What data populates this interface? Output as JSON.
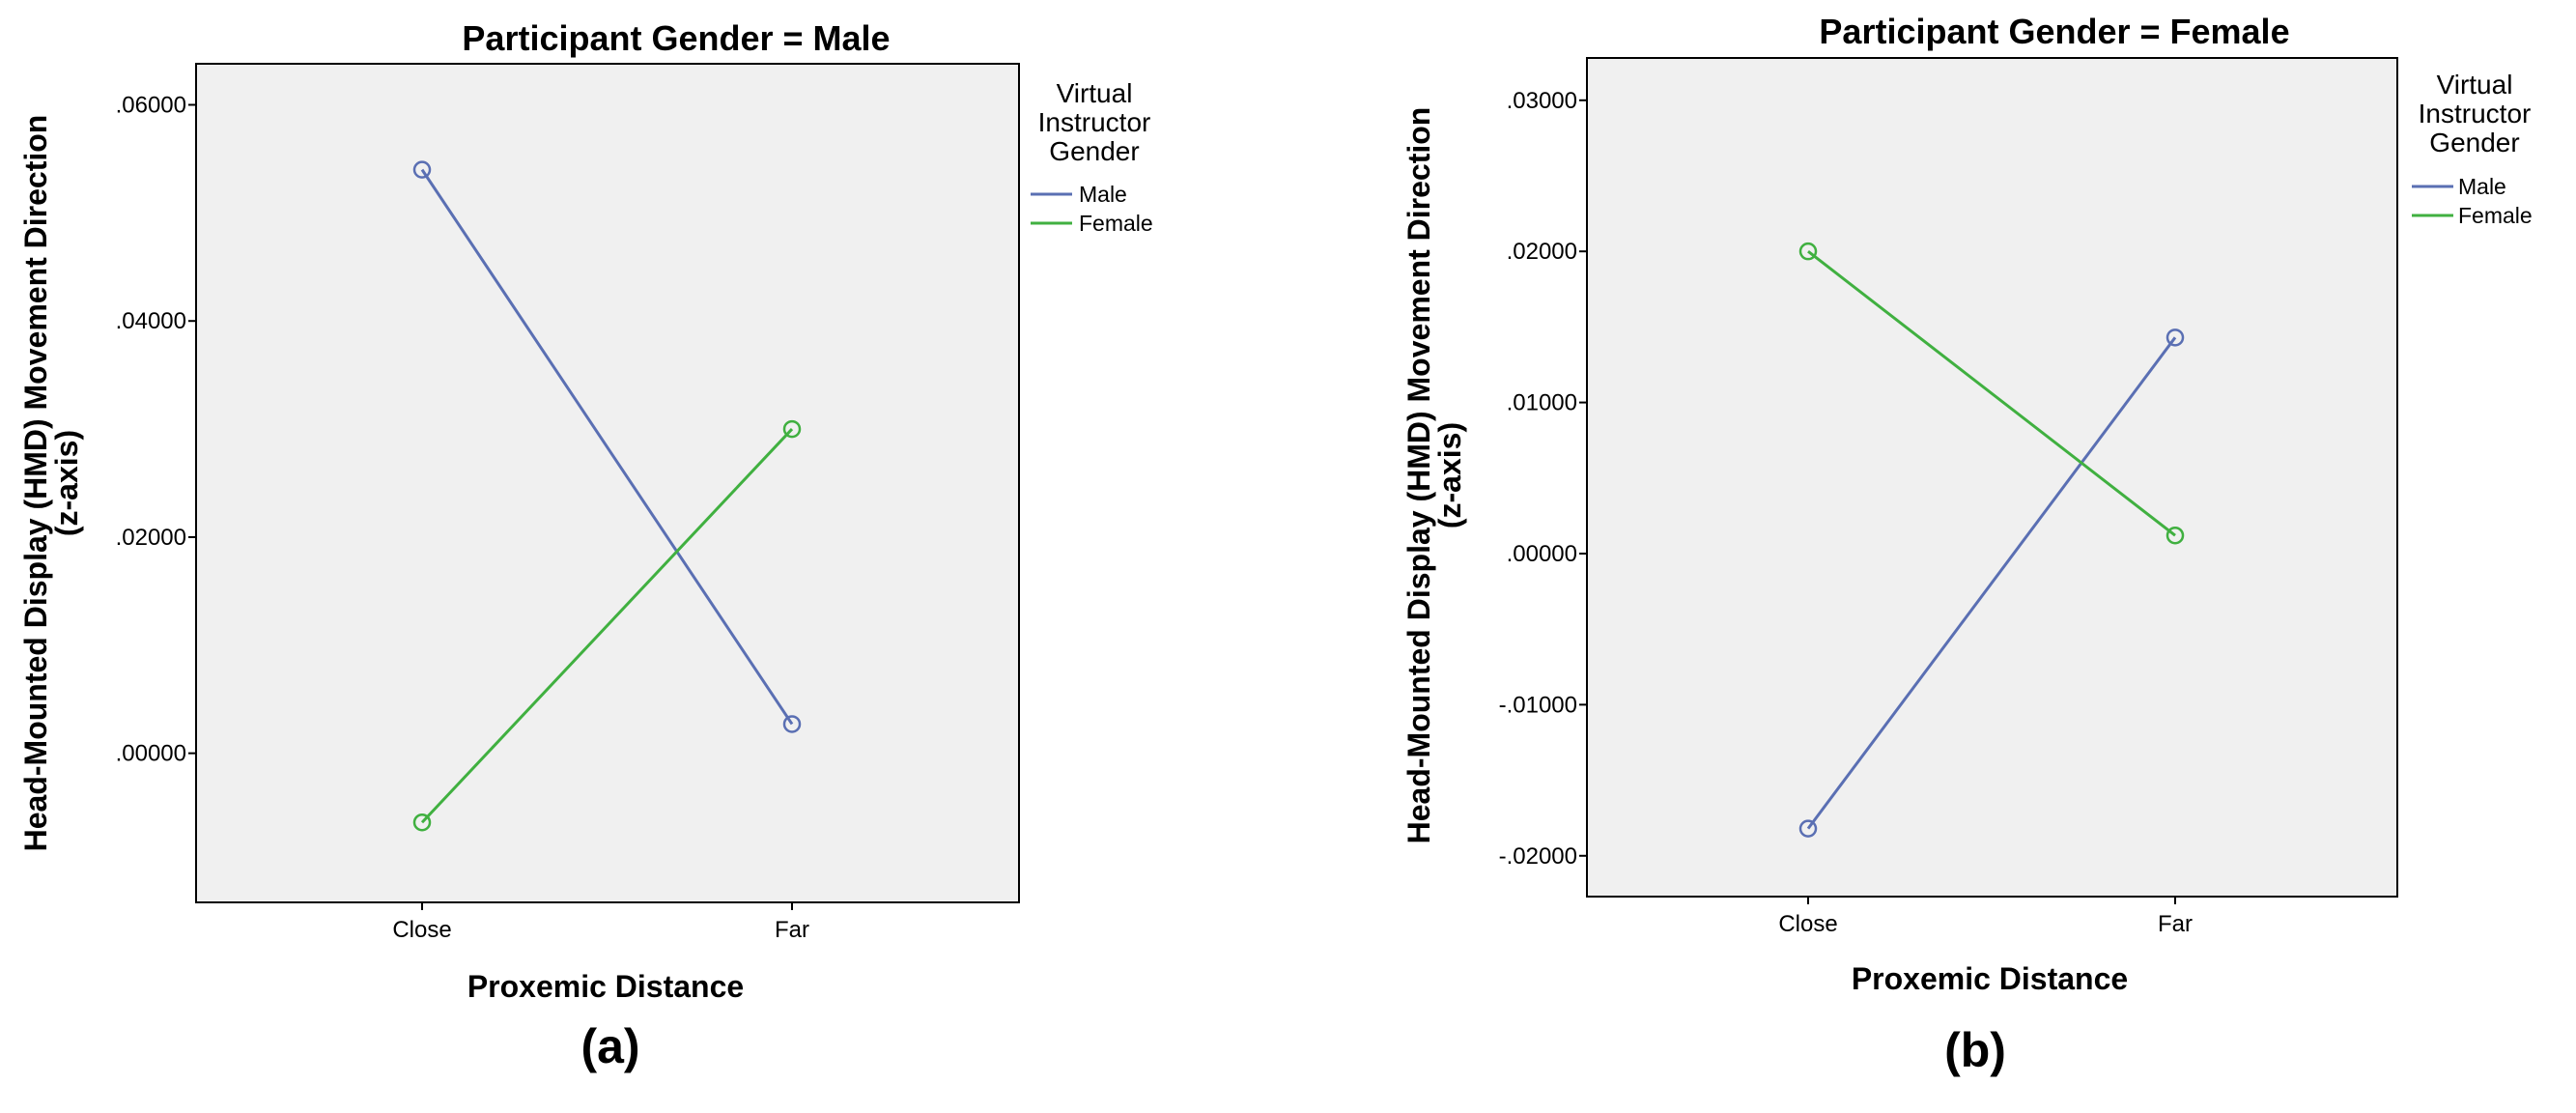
{
  "chart_data": [
    {
      "type": "line",
      "title": "Participant Gender = Male",
      "xlabel": "Proxemic Distance",
      "ylabel": "Head-Mounted Display (HMD) Movement Direction",
      "ylabel_line2": "(z-axis)",
      "categories": [
        "Close",
        "Far"
      ],
      "ylim": [
        -0.0138,
        0.0638
      ],
      "yticks": [
        0.0,
        0.02,
        0.04,
        0.06
      ],
      "ytick_labels": [
        ".00000",
        ".02000",
        ".04000",
        ".06000"
      ],
      "legend_title": [
        "Virtual",
        "Instructor",
        "Gender"
      ],
      "legend_position": "right",
      "grid": false,
      "series": [
        {
          "name": "Male",
          "color": "#5a6fb3",
          "values": [
            0.054,
            0.0027
          ]
        },
        {
          "name": "Female",
          "color": "#40b040",
          "values": [
            -0.0064,
            0.03
          ]
        }
      ],
      "caption": "(a)"
    },
    {
      "type": "line",
      "title": "Participant Gender = Female",
      "xlabel": "Proxemic Distance",
      "ylabel": "Head-Mounted Display (HMD) Movement Direction",
      "ylabel_line2": "(z-axis)",
      "categories": [
        "Close",
        "Far"
      ],
      "ylim": [
        -0.0227,
        0.0328
      ],
      "yticks": [
        -0.02,
        -0.01,
        0.0,
        0.01,
        0.02,
        0.03
      ],
      "ytick_labels": [
        "-.02000",
        "-.01000",
        ".00000",
        ".01000",
        ".02000",
        ".03000"
      ],
      "legend_title": [
        "Virtual",
        "Instructor",
        "Gender"
      ],
      "legend_position": "right",
      "grid": false,
      "series": [
        {
          "name": "Male",
          "color": "#5a6fb3",
          "values": [
            -0.0182,
            0.0143
          ]
        },
        {
          "name": "Female",
          "color": "#40b040",
          "values": [
            0.02,
            0.0012
          ]
        }
      ],
      "caption": "(b)"
    }
  ]
}
